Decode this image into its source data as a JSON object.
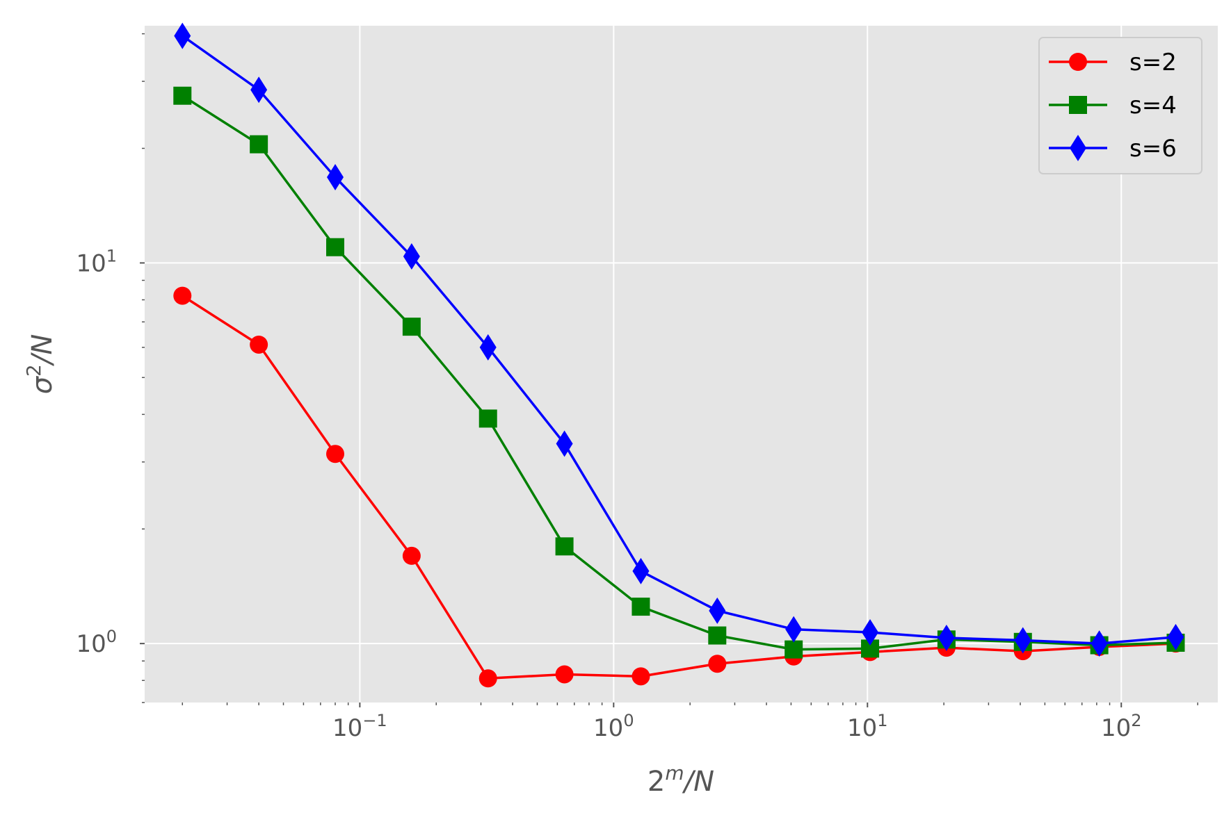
{
  "chart_data": {
    "type": "line",
    "xscale": "log",
    "yscale": "log",
    "xlabel_base": "2",
    "xlabel_exp": "m",
    "xlabel_tail": "/N",
    "ylabel_base": "σ",
    "ylabel_exp": "2",
    "ylabel_tail": "/N",
    "xlim": [
      0.0142,
      240
    ],
    "ylim": [
      0.7,
      42
    ],
    "x_ticks": [
      {
        "base": "10",
        "exp": "−1",
        "value": 0.1
      },
      {
        "base": "10",
        "exp": "0",
        "value": 1
      },
      {
        "base": "10",
        "exp": "1",
        "value": 10
      },
      {
        "base": "10",
        "exp": "2",
        "value": 100
      }
    ],
    "y_ticks": [
      {
        "base": "10",
        "exp": "0",
        "value": 1
      },
      {
        "base": "10",
        "exp": "1",
        "value": 10
      }
    ],
    "grid": true,
    "legend_position": "top-right",
    "x": [
      0.02,
      0.04,
      0.08,
      0.16,
      0.32,
      0.64,
      1.28,
      2.56,
      5.12,
      10.24,
      20.48,
      40.96,
      81.92,
      163.84
    ],
    "series": [
      {
        "name": "s=2",
        "color": "#ff0000",
        "marker": "circle",
        "values": [
          8.2,
          6.1,
          3.15,
          1.7,
          0.81,
          0.83,
          0.82,
          0.885,
          0.925,
          0.95,
          0.975,
          0.955,
          0.98,
          1.0
        ]
      },
      {
        "name": "s=4",
        "color": "#008000",
        "marker": "square",
        "values": [
          27.5,
          20.5,
          11.0,
          6.8,
          3.9,
          1.8,
          1.25,
          1.05,
          0.965,
          0.97,
          1.025,
          1.01,
          0.99,
          1.005
        ]
      },
      {
        "name": "s=6",
        "color": "#0000ff",
        "marker": "diamond",
        "values": [
          39.5,
          28.5,
          16.8,
          10.4,
          6.0,
          3.35,
          1.55,
          1.22,
          1.09,
          1.07,
          1.035,
          1.02,
          1.0,
          1.04
        ]
      }
    ]
  }
}
